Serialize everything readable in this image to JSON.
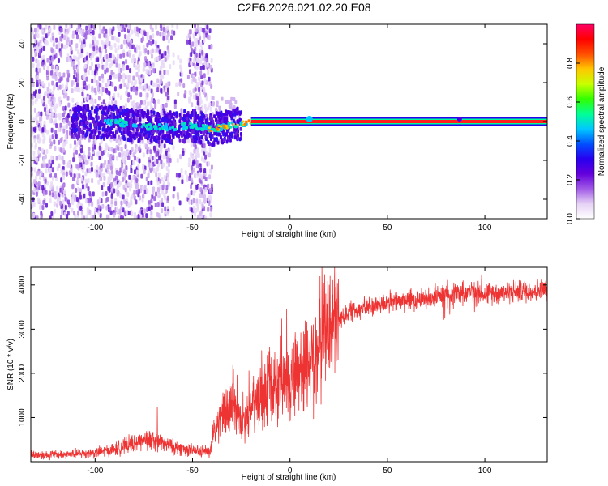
{
  "title": "C2E6.2026.021.02.20.E08",
  "chart_data": [
    {
      "type": "heatmap",
      "xlabel": "Height of straight line (km)",
      "ylabel": "Frequency (Hz)",
      "xlim": [
        -133,
        132
      ],
      "ylim": [
        -50,
        50
      ],
      "xticks": [
        -100,
        -50,
        0,
        50,
        100
      ],
      "yticks": [
        -40,
        -20,
        0,
        20,
        40
      ],
      "colorbar": {
        "label": "Normalized spectral amplitude",
        "range": [
          0,
          1
        ],
        "ticks": [
          "0.0",
          "0.2",
          "0.4",
          "0.6",
          "0.8"
        ],
        "colors": [
          "#ffffff",
          "#e6d2f5",
          "#a05ae6",
          "#6400dc",
          "#2800f0",
          "#0050ff",
          "#00c8ff",
          "#00ff96",
          "#32ff00",
          "#c8ff00",
          "#ffc800",
          "#ff5000",
          "#ff0000",
          "#ff0064"
        ]
      },
      "ridge_points": [
        {
          "x": -100,
          "y": -1
        },
        {
          "x": -90,
          "y": 0
        },
        {
          "x": -80,
          "y": -2
        },
        {
          "x": -70,
          "y": -3
        },
        {
          "x": -60,
          "y": -3
        },
        {
          "x": -50,
          "y": -2
        },
        {
          "x": -40,
          "y": -4
        },
        {
          "x": -30,
          "y": -2
        },
        {
          "x": -20,
          "y": 0
        },
        {
          "x": -10,
          "y": 0
        },
        {
          "x": 0,
          "y": 0
        },
        {
          "x": 10,
          "y": 0
        },
        {
          "x": 50,
          "y": 0
        },
        {
          "x": 100,
          "y": 0
        },
        {
          "x": 132,
          "y": 0
        }
      ],
      "noise_extent_x": [
        -133,
        -40
      ]
    },
    {
      "type": "line",
      "xlabel": "Height of straight line (km)",
      "ylabel": "SNR (10 * v/v)",
      "xlim": [
        -133,
        132
      ],
      "ylim": [
        0,
        4400
      ],
      "xticks": [
        -100,
        -50,
        0,
        50,
        100
      ],
      "yticks": [
        1000,
        2000,
        3000,
        4000
      ],
      "series": [
        {
          "color": "#ee3333",
          "x": [
            -133,
            -120,
            -110,
            -100,
            -90,
            -80,
            -75,
            -70,
            -60,
            -50,
            -41,
            -38,
            -35,
            -30,
            -25,
            -20,
            -15,
            -10,
            -5,
            0,
            5,
            10,
            15,
            20,
            25,
            30,
            40,
            50,
            60,
            70,
            80,
            90,
            100,
            110,
            120,
            132
          ],
          "y": [
            150,
            160,
            180,
            200,
            280,
            420,
            500,
            470,
            330,
            250,
            230,
            800,
            1000,
            1300,
            900,
            1200,
            1500,
            1600,
            1700,
            1900,
            2100,
            2300,
            2600,
            3000,
            3200,
            3400,
            3500,
            3600,
            3650,
            3700,
            3800,
            3850,
            3800,
            3850,
            3850,
            3900
          ]
        }
      ]
    }
  ]
}
